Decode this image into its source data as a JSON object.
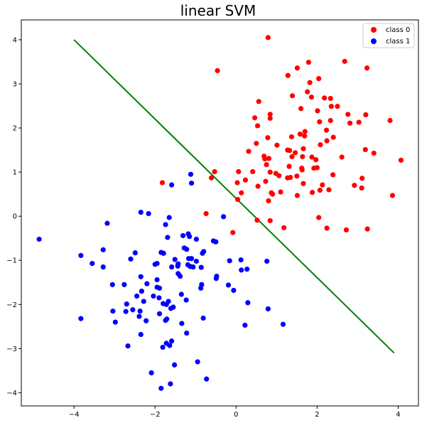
{
  "chart_data": {
    "type": "scatter",
    "title": "linear SVM",
    "xlabel": "",
    "ylabel": "",
    "xlim": [
      -5.3,
      4.5
    ],
    "ylim": [
      -4.3,
      4.45
    ],
    "xticks": [
      -4,
      -2,
      0,
      2,
      4
    ],
    "yticks": [
      4,
      3,
      2,
      1,
      0,
      -1,
      -2,
      -3,
      -4
    ],
    "grid": false,
    "legend_position": "top-right",
    "series": [
      {
        "name": "class 0",
        "color": "#ff0000",
        "points": [
          [
            0.79,
            4.05
          ],
          [
            -0.46,
            3.3
          ],
          [
            1.28,
            3.19
          ],
          [
            1.51,
            3.36
          ],
          [
            1.79,
            3.49
          ],
          [
            2.68,
            3.51
          ],
          [
            3.23,
            3.36
          ],
          [
            1.76,
            2.82
          ],
          [
            1.82,
            3.03
          ],
          [
            2.04,
            3.12
          ],
          [
            1.86,
            2.7
          ],
          [
            2.18,
            2.68
          ],
          [
            2.33,
            2.67
          ],
          [
            2.35,
            2.49
          ],
          [
            2.5,
            2.49
          ],
          [
            1.39,
            2.73
          ],
          [
            0.56,
            2.6
          ],
          [
            0.84,
            2.31
          ],
          [
            0.84,
            2.22
          ],
          [
            1.6,
            2.44
          ],
          [
            2.01,
            2.39
          ],
          [
            0.46,
            2.23
          ],
          [
            2.06,
            2.14
          ],
          [
            2.33,
            2.17
          ],
          [
            2.76,
            2.31
          ],
          [
            2.81,
            2.11
          ],
          [
            3.03,
            2.13
          ],
          [
            3.2,
            2.3
          ],
          [
            3.8,
            2.17
          ],
          [
            0.53,
            2.05
          ],
          [
            1.37,
            1.8
          ],
          [
            1.58,
            1.86
          ],
          [
            1.69,
            1.82
          ],
          [
            1.7,
            1.92
          ],
          [
            2.23,
            1.95
          ],
          [
            2.4,
            1.79
          ],
          [
            0.78,
            1.78
          ],
          [
            2.24,
            1.71
          ],
          [
            2.08,
            1.62
          ],
          [
            0.5,
            1.65
          ],
          [
            1.01,
            1.61
          ],
          [
            1.27,
            1.5
          ],
          [
            1.32,
            1.49
          ],
          [
            1.66,
            1.53
          ],
          [
            3.19,
            1.51
          ],
          [
            3.4,
            1.43
          ],
          [
            0.31,
            1.47
          ],
          [
            1.46,
            1.44
          ],
          [
            1.38,
            1.35
          ],
          [
            1.64,
            1.35
          ],
          [
            1.87,
            1.34
          ],
          [
            2.61,
            1.34
          ],
          [
            0.71,
            1.3
          ],
          [
            0.69,
            1.36
          ],
          [
            0.81,
            1.31
          ],
          [
            1.97,
            1.28
          ],
          [
            4.07,
            1.27
          ],
          [
            0.75,
            1.17
          ],
          [
            1.31,
            1.13
          ],
          [
            1.62,
            1.09
          ],
          [
            1.92,
            1.09
          ],
          [
            2.0,
            1.1
          ],
          [
            1.63,
            1.05
          ],
          [
            2.39,
            0.94
          ],
          [
            1.27,
            0.87
          ],
          [
            1.34,
            0.88
          ],
          [
            1.5,
            0.91
          ],
          [
            0.84,
            1.0
          ],
          [
            0.98,
            0.97
          ],
          [
            1.06,
            0.92
          ],
          [
            0.41,
            1.01
          ],
          [
            0.06,
            1.01
          ],
          [
            0.23,
            0.82
          ],
          [
            -0.53,
            1.01
          ],
          [
            -0.61,
            0.87
          ],
          [
            3.11,
            0.86
          ],
          [
            0.73,
            0.79
          ],
          [
            0.03,
            0.76
          ],
          [
            1.66,
            0.74
          ],
          [
            2.13,
            0.71
          ],
          [
            2.92,
            0.7
          ],
          [
            3.1,
            0.64
          ],
          [
            0.54,
            0.68
          ],
          [
            2.29,
            0.6
          ],
          [
            1.88,
            0.54
          ],
          [
            2.07,
            0.59
          ],
          [
            0.87,
            0.53
          ],
          [
            0.9,
            0.5
          ],
          [
            1.1,
            0.55
          ],
          [
            1.51,
            0.47
          ],
          [
            0.13,
            0.53
          ],
          [
            3.86,
            0.47
          ],
          [
            -1.82,
            0.76
          ],
          [
            0.04,
            0.38
          ],
          [
            0.8,
            0.35
          ],
          [
            -0.74,
            0.06
          ],
          [
            2.04,
            -0.03
          ],
          [
            0.52,
            -0.09
          ],
          [
            0.84,
            -0.1
          ],
          [
            1.18,
            -0.26
          ],
          [
            2.24,
            -0.27
          ],
          [
            2.72,
            -0.31
          ],
          [
            3.24,
            -0.29
          ],
          [
            -0.08,
            -0.37
          ]
        ]
      },
      {
        "name": "class 1",
        "color": "#0000ff",
        "points": [
          [
            -1.12,
            0.95
          ],
          [
            -1.1,
            0.75
          ],
          [
            -1.59,
            0.71
          ],
          [
            -2.35,
            0.09
          ],
          [
            -2.16,
            0.06
          ],
          [
            -1.65,
            -0.03
          ],
          [
            -0.31,
            -0.01
          ],
          [
            -1.74,
            -0.19
          ],
          [
            -3.18,
            -0.16
          ],
          [
            -4.86,
            -0.52
          ],
          [
            -1.31,
            -0.44
          ],
          [
            -1.18,
            -0.4
          ],
          [
            -1.15,
            -0.46
          ],
          [
            -1.69,
            -0.48
          ],
          [
            -0.98,
            -0.52
          ],
          [
            -0.56,
            -0.56
          ],
          [
            -0.5,
            -0.58
          ],
          [
            -3.28,
            -0.76
          ],
          [
            -1.22,
            -0.75
          ],
          [
            -1.28,
            -0.72
          ],
          [
            -2.49,
            -0.83
          ],
          [
            -1.85,
            -0.82
          ],
          [
            -1.79,
            -0.84
          ],
          [
            -0.8,
            -0.8
          ],
          [
            -0.83,
            -0.84
          ],
          [
            -3.83,
            -0.89
          ],
          [
            -2.6,
            -0.97
          ],
          [
            -1.51,
            -0.98
          ],
          [
            -1.17,
            -0.96
          ],
          [
            -1.1,
            -0.96
          ],
          [
            -0.98,
            -1.02
          ],
          [
            -0.16,
            -1.01
          ],
          [
            0.12,
            -0.99
          ],
          [
            0.76,
            -1.02
          ],
          [
            -3.55,
            -1.07
          ],
          [
            -1.95,
            -1.07
          ],
          [
            -2.0,
            -1.09
          ],
          [
            -1.43,
            -1.08
          ],
          [
            -1.19,
            -1.1
          ],
          [
            -1.13,
            -1.14
          ],
          [
            -1.59,
            -1.15
          ],
          [
            -1.44,
            -1.13
          ],
          [
            -1.06,
            -1.15
          ],
          [
            -0.86,
            -1.16
          ],
          [
            -3.28,
            -1.15
          ],
          [
            0.13,
            -1.22
          ],
          [
            0.27,
            -1.2
          ],
          [
            -1.43,
            -1.3
          ],
          [
            -1.38,
            -1.36
          ],
          [
            -2.35,
            -1.37
          ],
          [
            -1.95,
            -1.44
          ],
          [
            -0.48,
            -1.36
          ],
          [
            -0.49,
            -1.41
          ],
          [
            -3.05,
            -1.55
          ],
          [
            -2.76,
            -1.55
          ],
          [
            -2.2,
            -1.53
          ],
          [
            -0.85,
            -1.55
          ],
          [
            -0.87,
            -1.63
          ],
          [
            -0.19,
            -1.56
          ],
          [
            -0.06,
            -1.68
          ],
          [
            -1.95,
            -1.61
          ],
          [
            -1.89,
            -1.63
          ],
          [
            -2.33,
            -1.7
          ],
          [
            -1.35,
            -1.77
          ],
          [
            -2.45,
            -1.81
          ],
          [
            -2.04,
            -1.81
          ],
          [
            -1.9,
            -1.85
          ],
          [
            -1.67,
            -1.93
          ],
          [
            -1.23,
            -1.9
          ],
          [
            -2.28,
            -1.93
          ],
          [
            -1.8,
            -1.98
          ],
          [
            -1.72,
            -2.0
          ],
          [
            -2.7,
            -1.99
          ],
          [
            -1.55,
            -2.06
          ],
          [
            -1.61,
            -2.09
          ],
          [
            0.29,
            -1.96
          ],
          [
            0.79,
            -2.1
          ],
          [
            -3.04,
            -2.15
          ],
          [
            -2.72,
            -2.16
          ],
          [
            -2.55,
            -2.12
          ],
          [
            -2.37,
            -2.15
          ],
          [
            -1.89,
            -2.21
          ],
          [
            -2.39,
            -2.27
          ],
          [
            -1.71,
            -2.33
          ],
          [
            -1.74,
            -2.36
          ],
          [
            -3.83,
            -2.32
          ],
          [
            -2.98,
            -2.4
          ],
          [
            -2.22,
            -2.37
          ],
          [
            -0.81,
            -2.31
          ],
          [
            -1.34,
            -2.43
          ],
          [
            0.22,
            -2.47
          ],
          [
            1.16,
            -2.45
          ],
          [
            -1.22,
            -2.65
          ],
          [
            -2.35,
            -2.68
          ],
          [
            -1.59,
            -2.83
          ],
          [
            -1.72,
            -2.88
          ],
          [
            -1.64,
            -2.93
          ],
          [
            -2.67,
            -2.94
          ],
          [
            -1.81,
            -2.97
          ],
          [
            -0.95,
            -3.3
          ],
          [
            -1.52,
            -3.37
          ],
          [
            -2.09,
            -3.55
          ],
          [
            -0.73,
            -3.69
          ],
          [
            -1.62,
            -3.8
          ],
          [
            -1.85,
            -3.9
          ]
        ]
      }
    ],
    "decision_line": {
      "color": "#008000",
      "x": [
        -4.0,
        3.9
      ],
      "y": [
        4.0,
        -3.1
      ]
    }
  }
}
